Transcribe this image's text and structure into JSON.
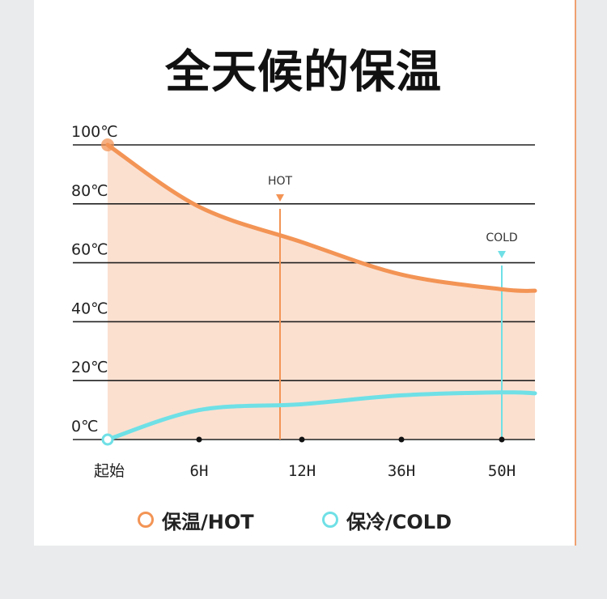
{
  "title": "全天候的保温",
  "colors": {
    "hot": "#f39455",
    "cold": "#6fe0e6",
    "fill": "#fbe0d0",
    "grid": "#222222"
  },
  "chart_data": {
    "type": "line",
    "title": "全天候的保温",
    "categories": [
      "起始",
      "6H",
      "12H",
      "36H",
      "50H"
    ],
    "y_tick_labels": [
      "100℃",
      "80℃",
      "60℃",
      "40℃",
      "20℃",
      "0℃"
    ],
    "ylim": [
      0,
      100
    ],
    "grid": true,
    "series": [
      {
        "name": "保温/HOT",
        "values": [
          100,
          79,
          67,
          56,
          51
        ]
      },
      {
        "name": "保冷/COLD",
        "values": [
          0,
          10,
          12,
          15,
          16
        ]
      }
    ],
    "annotations": [
      {
        "text": "HOT",
        "at": "12H"
      },
      {
        "text": "COLD",
        "at": "50H"
      }
    ],
    "legend_position": "bottom"
  },
  "legend": {
    "hot_label": "保温/HOT",
    "cold_label": "保冷/COLD"
  }
}
